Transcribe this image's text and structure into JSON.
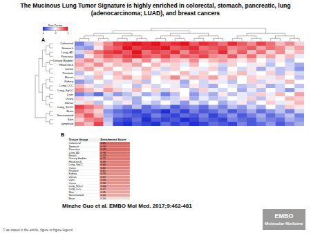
{
  "title": "The Mucinous Lung Tumor Signature is highly enriched in colorectal, stomach, pancreatic, lung (adenocarcinoma; LUAD), and breast cancers",
  "chart_data": {
    "type": "heatmap",
    "panel_label": "A",
    "tick_labels": "y",
    "rows": [
      "Colorectal",
      "Stomach",
      "Lung_AD",
      "Pancreas",
      "Urinary Bladder",
      "Head-neck",
      "Cervix",
      "Prostate",
      "Breast",
      "Kidney",
      "Lung_LCC",
      "Lung_SqCC",
      "Liver",
      "Ovary",
      "Uterus",
      "Lung_SCLC",
      "Brain",
      "Sarcomatoid",
      "Skin",
      "Lymphoid"
    ],
    "cells": [
      [
        -0.6,
        -0.3,
        0.2,
        0.5,
        0.8,
        0.9,
        1,
        0.9,
        1,
        0.8,
        0.9,
        1,
        0.7,
        0.9,
        0.8,
        0.6,
        0.9,
        0.7,
        0.5,
        0.8,
        0.6,
        0.3,
        0.5,
        0.2
      ],
      [
        -0.4,
        -0.5,
        0.1,
        0.6,
        0.7,
        1,
        0.8,
        0.9,
        0.9,
        1,
        0.7,
        0.8,
        0.9,
        0.6,
        0.7,
        0.8,
        0.5,
        0.6,
        0.7,
        0.4,
        0.6,
        0.5,
        0.2,
        0.4
      ],
      [
        -0.2,
        0.3,
        0.6,
        0.8,
        0.9,
        0.7,
        1,
        0.6,
        0.8,
        0.7,
        0.9,
        0.5,
        0.8,
        0.7,
        0.6,
        0.9,
        0.4,
        0.7,
        0.3,
        0.6,
        0.2,
        0.5,
        0.1,
        0.3
      ],
      [
        -0.5,
        0.1,
        0.4,
        0.7,
        0.6,
        0.8,
        0.9,
        0.7,
        0.6,
        0.8,
        0.5,
        0.7,
        0.6,
        0.8,
        0.5,
        0.4,
        0.7,
        0.3,
        0.6,
        0.2,
        0.4,
        0.1,
        0.3,
        -0.1
      ],
      [
        0.3,
        0.5,
        0.2,
        0.4,
        0.3,
        0.6,
        0.2,
        0.5,
        0.1,
        0.4,
        0.3,
        0.2,
        0.5,
        0.1,
        0.3,
        0.4,
        0.2,
        0.1,
        0.3,
        0,
        -0.2,
        0.1,
        -0.3,
        0
      ],
      [
        0.4,
        0.2,
        0.5,
        0.1,
        0.3,
        0.2,
        0.4,
        0,
        0.3,
        0.1,
        0.2,
        -0.1,
        0.3,
        0,
        0.1,
        -0.2,
        0.2,
        0,
        -0.1,
        0.1,
        -0.3,
        0,
        -0.2,
        -0.4
      ],
      [
        0.2,
        0.4,
        0.1,
        0.3,
        0,
        0.2,
        -0.1,
        0.3,
        0.1,
        -0.2,
        0.2,
        0,
        0.1,
        -0.1,
        0.2,
        -0.3,
        0,
        -0.2,
        0.1,
        -0.4,
        -0.1,
        -0.3,
        -0.2,
        -0.5
      ],
      [
        -0.3,
        0,
        0.2,
        -0.1,
        0.3,
        0.1,
        0,
        0.2,
        -0.2,
        0.1,
        0,
        0.3,
        -0.1,
        0.2,
        0,
        -0.2,
        0.1,
        0.3,
        -0.1,
        0,
        0.2,
        -0.3,
        0.1,
        -0.2
      ],
      [
        0.1,
        -0.2,
        0.3,
        0,
        0.2,
        0.4,
        0.1,
        0.3,
        0,
        0.2,
        0.5,
        0.1,
        0.3,
        0.2,
        0.4,
        0.1,
        0.3,
        0,
        0.2,
        0.1,
        -0.1,
        0.2,
        0,
        -0.3
      ],
      [
        -0.5,
        -0.3,
        0,
        -0.2,
        0.1,
        -0.1,
        0.2,
        -0.3,
        0,
        -0.1,
        0.1,
        -0.4,
        0,
        -0.2,
        0.1,
        -0.1,
        -0.3,
        0,
        0.2,
        -0.2,
        0.1,
        -0.1,
        0.3,
        0
      ],
      [
        0.3,
        0.1,
        -0.2,
        0.2,
        -0.1,
        0,
        -0.3,
        0.1,
        -0.2,
        0,
        -0.1,
        -0.3,
        0.1,
        -0.2,
        -0.4,
        0,
        -0.1,
        -0.3,
        -0.2,
        0.1,
        -0.4,
        -0.2,
        0,
        -0.3
      ],
      [
        0.5,
        0.3,
        0.1,
        0.4,
        0.2,
        -0.1,
        0.3,
        0,
        0.2,
        -0.2,
        0.1,
        0,
        -0.3,
        0.2,
        -0.1,
        -0.2,
        0,
        -0.4,
        -0.1,
        -0.3,
        0,
        -0.2,
        -0.5,
        -0.1
      ],
      [
        -0.6,
        -0.4,
        -0.7,
        -0.2,
        -0.5,
        -0.3,
        -0.1,
        -0.4,
        -0.2,
        -0.6,
        -0.3,
        0,
        -0.5,
        -0.2,
        -0.4,
        0.1,
        -0.3,
        -0.1,
        -0.2,
        0.2,
        -0.1,
        0.3,
        0,
        0.4
      ],
      [
        0.2,
        -0.1,
        0,
        -0.3,
        0.1,
        -0.2,
        -0.4,
        0,
        -0.1,
        -0.3,
        -0.2,
        0.1,
        -0.4,
        -0.1,
        -0.3,
        -0.2,
        0,
        -0.1,
        0.2,
        -0.3,
        0.1,
        0,
        0.3,
        0.2
      ],
      [
        -0.1,
        0.2,
        -0.3,
        0,
        -0.2,
        0.1,
        -0.4,
        -0.1,
        -0.3,
        0,
        -0.2,
        -0.5,
        -0.1,
        -0.3,
        0,
        -0.4,
        -0.2,
        0.1,
        -0.3,
        0,
        0.2,
        -0.1,
        0.1,
        0.3
      ],
      [
        0.8,
        0.6,
        0.4,
        -0.2,
        -0.4,
        -0.6,
        -0.3,
        -0.7,
        -0.5,
        -0.4,
        -0.8,
        -0.6,
        -0.5,
        -0.7,
        -0.4,
        -0.6,
        -0.3,
        -0.5,
        -0.2,
        -0.4,
        0,
        -0.3,
        0.2,
        0.1
      ],
      [
        0.6,
        0.4,
        0.2,
        -0.5,
        -0.7,
        -0.8,
        -0.9,
        -0.7,
        -0.8,
        -1,
        -0.7,
        -0.9,
        -0.6,
        -0.8,
        -0.7,
        -0.5,
        -0.8,
        -0.6,
        -0.4,
        -0.7,
        -0.5,
        -0.3,
        -0.6,
        -0.2
      ],
      [
        0.4,
        0.7,
        0.3,
        -0.4,
        -0.6,
        -0.7,
        -0.8,
        -0.9,
        -0.6,
        -0.8,
        -0.9,
        -0.7,
        -0.8,
        -0.6,
        -0.9,
        -0.7,
        -0.5,
        -0.8,
        -0.6,
        -0.4,
        -0.7,
        -0.5,
        -0.3,
        -0.6
      ],
      [
        0.2,
        0.5,
        0.6,
        -0.3,
        -0.8,
        -0.9,
        -0.7,
        -1,
        -0.8,
        -0.9,
        -0.8,
        -1,
        -0.9,
        -0.7,
        -0.8,
        -0.9,
        -0.6,
        -0.7,
        -0.8,
        -0.5,
        -0.6,
        -0.7,
        -0.4,
        -0.5
      ],
      [
        0.5,
        0.3,
        0.8,
        -0.2,
        -0.9,
        -1,
        -0.8,
        -0.9,
        -1,
        -0.7,
        -0.9,
        -0.8,
        -1,
        -0.9,
        -0.7,
        -0.8,
        -0.9,
        -0.6,
        -0.8,
        -0.7,
        -0.5,
        -0.8,
        -0.6,
        -0.4
      ]
    ],
    "colorbar": {
      "title": "Row Zscore",
      "range": [
        -1,
        1
      ],
      "ticks": [
        -1,
        0,
        1
      ]
    }
  },
  "table": {
    "panel_label": "B",
    "header": [
      "Tissue Group",
      "Enrichment Score"
    ],
    "rows": [
      [
        "Colorectal",
        0.81
      ],
      [
        "Stomach",
        0.79
      ],
      [
        "Pancreas",
        0.76
      ],
      [
        "Lung_AD",
        0.76
      ],
      [
        "Breast",
        0.73
      ],
      [
        "Urinary bladder",
        0.71
      ],
      [
        "Head-neck",
        0.69
      ],
      [
        "Lung_SqCC",
        0.66
      ],
      [
        "Ovary",
        0.65
      ],
      [
        "Prostate",
        0.61
      ],
      [
        "Kidney",
        0.59
      ],
      [
        "Uterus",
        0.57
      ],
      [
        "Liver",
        0.56
      ],
      [
        "Cervix",
        0.56
      ],
      [
        "Lung_SCLC",
        0.54
      ],
      [
        "Lung_LCC",
        0.47
      ],
      [
        "Skin",
        0.45
      ],
      [
        "Sarcomatoid",
        0.42
      ],
      [
        "Brain",
        0.14
      ]
    ]
  },
  "citation": "Minzhe Guo et al. EMBO Mol Med. 2017;9:462-481",
  "copyright": "© as stated in the article, figure or figure legend",
  "logo": [
    "EMBO",
    "Molecular Medicine"
  ]
}
